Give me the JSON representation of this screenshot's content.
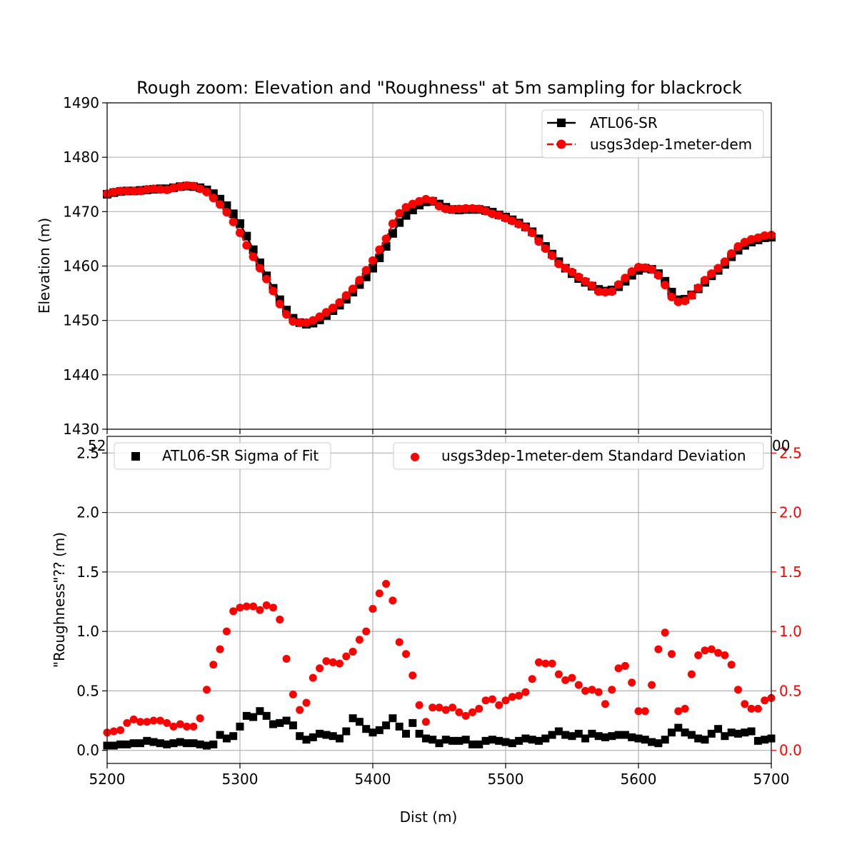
{
  "chart_data": [
    {
      "type": "line",
      "title": "Rough zoom: Elevation and \"Roughness\" at 5m sampling for blackrock",
      "xlabel": "",
      "ylabel": "Elevation (m)",
      "xlim": [
        5200,
        5700
      ],
      "ylim": [
        1430,
        1490
      ],
      "xticks": [
        5200,
        5300,
        5400,
        5500,
        5600,
        5700
      ],
      "yticks": [
        1430,
        1440,
        1450,
        1460,
        1470,
        1480,
        1490
      ],
      "grid": true,
      "legend_position": "top-right",
      "series": [
        {
          "name": "ATL06-SR",
          "color": "#000000",
          "marker": "square",
          "line": "solid",
          "x": [
            5200,
            5205,
            5210,
            5215,
            5220,
            5225,
            5230,
            5235,
            5240,
            5245,
            5250,
            5255,
            5260,
            5265,
            5270,
            5275,
            5280,
            5285,
            5290,
            5295,
            5300,
            5305,
            5310,
            5315,
            5320,
            5325,
            5330,
            5335,
            5340,
            5345,
            5350,
            5355,
            5360,
            5365,
            5370,
            5375,
            5380,
            5385,
            5390,
            5395,
            5400,
            5405,
            5410,
            5415,
            5420,
            5425,
            5430,
            5435,
            5440,
            5445,
            5450,
            5455,
            5460,
            5465,
            5470,
            5475,
            5480,
            5485,
            5490,
            5495,
            5500,
            5505,
            5510,
            5515,
            5520,
            5525,
            5530,
            5535,
            5540,
            5545,
            5550,
            5555,
            5560,
            5565,
            5570,
            5575,
            5580,
            5585,
            5590,
            5595,
            5600,
            5605,
            5610,
            5615,
            5620,
            5625,
            5630,
            5635,
            5640,
            5645,
            5650,
            5655,
            5660,
            5665,
            5670,
            5675,
            5680,
            5685,
            5690,
            5695,
            5700
          ],
          "y": [
            1473.2,
            1473.5,
            1473.7,
            1473.8,
            1473.8,
            1473.9,
            1474.0,
            1474.1,
            1474.2,
            1474.2,
            1474.4,
            1474.6,
            1474.7,
            1474.6,
            1474.4,
            1474.0,
            1473.3,
            1472.3,
            1471.1,
            1469.6,
            1467.8,
            1465.5,
            1463.0,
            1460.6,
            1458.2,
            1455.9,
            1453.8,
            1451.9,
            1450.4,
            1449.6,
            1449.3,
            1449.5,
            1450.1,
            1450.9,
            1451.8,
            1452.8,
            1453.9,
            1455.2,
            1456.6,
            1458.0,
            1459.6,
            1461.5,
            1463.6,
            1466.0,
            1468.0,
            1469.3,
            1470.3,
            1471.2,
            1471.8,
            1471.9,
            1471.4,
            1470.8,
            1470.4,
            1470.3,
            1470.4,
            1470.4,
            1470.4,
            1470.2,
            1469.9,
            1469.4,
            1469.0,
            1468.5,
            1467.9,
            1467.2,
            1466.3,
            1465.0,
            1463.6,
            1462.2,
            1460.8,
            1459.6,
            1458.6,
            1457.7,
            1457.0,
            1456.3,
            1455.7,
            1455.4,
            1455.6,
            1456.2,
            1457.2,
            1458.3,
            1459.2,
            1459.6,
            1459.4,
            1458.6,
            1457.2,
            1455.2,
            1453.8,
            1453.9,
            1454.7,
            1455.8,
            1457.0,
            1458.2,
            1459.2,
            1460.3,
            1461.7,
            1462.9,
            1463.8,
            1464.4,
            1464.8,
            1465.2,
            1465.3
          ]
        },
        {
          "name": "usgs3dep-1meter-dem",
          "color": "#ff0000",
          "marker": "circle",
          "line": "dashed",
          "x": [
            5200,
            5205,
            5210,
            5215,
            5220,
            5225,
            5230,
            5235,
            5240,
            5245,
            5250,
            5255,
            5260,
            5265,
            5270,
            5275,
            5280,
            5285,
            5290,
            5295,
            5300,
            5305,
            5310,
            5315,
            5320,
            5325,
            5330,
            5335,
            5340,
            5345,
            5350,
            5355,
            5360,
            5365,
            5370,
            5375,
            5380,
            5385,
            5390,
            5395,
            5400,
            5405,
            5410,
            5415,
            5420,
            5425,
            5430,
            5435,
            5440,
            5445,
            5450,
            5455,
            5460,
            5465,
            5470,
            5475,
            5480,
            5485,
            5490,
            5495,
            5500,
            5505,
            5510,
            5515,
            5520,
            5525,
            5530,
            5535,
            5540,
            5545,
            5550,
            5555,
            5560,
            5565,
            5570,
            5575,
            5580,
            5585,
            5590,
            5595,
            5600,
            5605,
            5610,
            5615,
            5620,
            5625,
            5630,
            5635,
            5640,
            5645,
            5650,
            5655,
            5660,
            5665,
            5670,
            5675,
            5680,
            5685,
            5690,
            5695,
            5700
          ],
          "y": [
            1473.3,
            1473.6,
            1473.8,
            1473.8,
            1473.8,
            1473.8,
            1474.1,
            1474.2,
            1474.1,
            1474.0,
            1474.4,
            1474.6,
            1474.8,
            1474.7,
            1474.2,
            1473.6,
            1472.5,
            1471.3,
            1469.9,
            1468.1,
            1466.1,
            1463.8,
            1461.7,
            1459.6,
            1457.6,
            1455.4,
            1453.0,
            1451.1,
            1449.8,
            1449.6,
            1449.6,
            1450.0,
            1450.7,
            1451.5,
            1452.3,
            1453.3,
            1454.6,
            1455.8,
            1457.4,
            1459.2,
            1461.0,
            1463.0,
            1465.0,
            1467.8,
            1469.7,
            1470.8,
            1471.4,
            1471.9,
            1472.3,
            1472.0,
            1471.0,
            1470.5,
            1470.4,
            1470.5,
            1470.6,
            1470.6,
            1470.5,
            1470.1,
            1469.6,
            1469.3,
            1468.8,
            1468.3,
            1467.7,
            1467.1,
            1466.1,
            1464.5,
            1463.2,
            1461.9,
            1460.4,
            1459.6,
            1458.9,
            1458.0,
            1457.2,
            1456.4,
            1455.3,
            1455.2,
            1455.3,
            1456.6,
            1457.8,
            1459.0,
            1459.8,
            1459.7,
            1459.4,
            1458.3,
            1456.5,
            1454.3,
            1453.4,
            1453.6,
            1454.6,
            1456.0,
            1457.4,
            1458.6,
            1459.6,
            1460.8,
            1462.3,
            1463.6,
            1464.4,
            1464.9,
            1465.2,
            1465.6,
            1465.7
          ]
        }
      ]
    },
    {
      "type": "scatter",
      "title": "",
      "xlabel": "Dist (m)",
      "ylabel": "\"Roughness\"?? (m)",
      "xlim": [
        5200,
        5700
      ],
      "ylim_left": [
        -0.11,
        2.64
      ],
      "ylim_right": [
        -0.11,
        2.64
      ],
      "xticks": [
        5200,
        5300,
        5400,
        5500,
        5600,
        5700
      ],
      "yticks_left": [
        0.0,
        0.5,
        1.0,
        1.5,
        2.0,
        2.5
      ],
      "yticks_right": [
        0.0,
        0.5,
        1.0,
        1.5,
        2.0,
        2.5
      ],
      "overlapped_tick_labels": [
        "52",
        "00"
      ],
      "grid": true,
      "legend_position": "top-left and top-right",
      "series": [
        {
          "name": "ATL06-SR Sigma of Fit",
          "axis": "left",
          "color": "#000000",
          "marker": "square",
          "x": [
            5200,
            5205,
            5210,
            5215,
            5220,
            5225,
            5230,
            5235,
            5240,
            5245,
            5250,
            5255,
            5260,
            5265,
            5270,
            5275,
            5280,
            5285,
            5290,
            5295,
            5300,
            5305,
            5310,
            5315,
            5320,
            5325,
            5330,
            5335,
            5340,
            5345,
            5350,
            5355,
            5360,
            5365,
            5370,
            5375,
            5380,
            5385,
            5390,
            5395,
            5400,
            5405,
            5410,
            5415,
            5420,
            5425,
            5430,
            5435,
            5440,
            5445,
            5450,
            5455,
            5460,
            5465,
            5470,
            5475,
            5480,
            5485,
            5490,
            5495,
            5500,
            5505,
            5510,
            5515,
            5520,
            5525,
            5530,
            5535,
            5540,
            5545,
            5550,
            5555,
            5560,
            5565,
            5570,
            5575,
            5580,
            5585,
            5590,
            5595,
            5600,
            5605,
            5610,
            5615,
            5620,
            5625,
            5630,
            5635,
            5640,
            5645,
            5650,
            5655,
            5660,
            5665,
            5670,
            5675,
            5680,
            5685,
            5690,
            5695,
            5700
          ],
          "y": [
            0.04,
            0.04,
            0.05,
            0.05,
            0.06,
            0.06,
            0.08,
            0.07,
            0.06,
            0.05,
            0.06,
            0.07,
            0.06,
            0.06,
            0.05,
            0.04,
            0.05,
            0.13,
            0.1,
            0.12,
            0.2,
            0.29,
            0.28,
            0.33,
            0.29,
            0.22,
            0.23,
            0.25,
            0.21,
            0.12,
            0.09,
            0.11,
            0.14,
            0.13,
            0.12,
            0.1,
            0.16,
            0.27,
            0.24,
            0.18,
            0.15,
            0.17,
            0.21,
            0.27,
            0.2,
            0.14,
            0.23,
            0.14,
            0.1,
            0.09,
            0.06,
            0.09,
            0.08,
            0.08,
            0.09,
            0.05,
            0.05,
            0.08,
            0.09,
            0.08,
            0.07,
            0.06,
            0.08,
            0.1,
            0.09,
            0.08,
            0.1,
            0.13,
            0.16,
            0.13,
            0.12,
            0.14,
            0.1,
            0.14,
            0.12,
            0.11,
            0.12,
            0.13,
            0.13,
            0.11,
            0.1,
            0.09,
            0.07,
            0.06,
            0.09,
            0.15,
            0.19,
            0.15,
            0.13,
            0.1,
            0.09,
            0.14,
            0.18,
            0.12,
            0.15,
            0.14,
            0.15,
            0.16,
            0.08,
            0.09,
            0.1
          ]
        },
        {
          "name": "usgs3dep-1meter-dem Standard Deviation",
          "axis": "right",
          "color": "#ff0000",
          "marker": "circle",
          "x": [
            5200,
            5205,
            5210,
            5215,
            5220,
            5225,
            5230,
            5235,
            5240,
            5245,
            5250,
            5255,
            5260,
            5265,
            5270,
            5275,
            5280,
            5285,
            5290,
            5295,
            5300,
            5305,
            5310,
            5315,
            5320,
            5325,
            5330,
            5335,
            5340,
            5345,
            5350,
            5355,
            5360,
            5365,
            5370,
            5375,
            5380,
            5385,
            5390,
            5395,
            5400,
            5405,
            5410,
            5415,
            5420,
            5425,
            5430,
            5435,
            5440,
            5445,
            5450,
            5455,
            5460,
            5465,
            5470,
            5475,
            5480,
            5485,
            5490,
            5495,
            5500,
            5505,
            5510,
            5515,
            5520,
            5525,
            5530,
            5535,
            5540,
            5545,
            5550,
            5555,
            5560,
            5565,
            5570,
            5575,
            5580,
            5585,
            5590,
            5595,
            5600,
            5605,
            5610,
            5615,
            5620,
            5625,
            5630,
            5635,
            5640,
            5645,
            5650,
            5655,
            5660,
            5665,
            5670,
            5675,
            5680,
            5685,
            5690,
            5695,
            5700
          ],
          "y": [
            0.15,
            0.16,
            0.17,
            0.23,
            0.26,
            0.24,
            0.24,
            0.25,
            0.25,
            0.23,
            0.2,
            0.22,
            0.2,
            0.2,
            0.27,
            0.51,
            0.72,
            0.85,
            1.0,
            1.17,
            1.2,
            1.21,
            1.21,
            1.18,
            1.22,
            1.2,
            1.1,
            0.77,
            0.47,
            0.34,
            0.4,
            0.61,
            0.69,
            0.75,
            0.74,
            0.73,
            0.79,
            0.83,
            0.93,
            1.0,
            1.19,
            1.32,
            1.4,
            1.26,
            0.91,
            0.81,
            0.63,
            0.38,
            0.24,
            0.36,
            0.36,
            0.34,
            0.36,
            0.32,
            0.29,
            0.32,
            0.35,
            0.42,
            0.43,
            0.38,
            0.42,
            0.45,
            0.46,
            0.49,
            0.6,
            0.74,
            0.73,
            0.73,
            0.64,
            0.59,
            0.61,
            0.55,
            0.5,
            0.51,
            0.49,
            0.39,
            0.51,
            0.69,
            0.71,
            0.57,
            0.33,
            0.33,
            0.55,
            0.85,
            0.99,
            0.81,
            0.33,
            0.35,
            0.64,
            0.8,
            0.84,
            0.85,
            0.82,
            0.8,
            0.72,
            0.51,
            0.39,
            0.35,
            0.35,
            0.42,
            0.44
          ]
        }
      ]
    }
  ]
}
